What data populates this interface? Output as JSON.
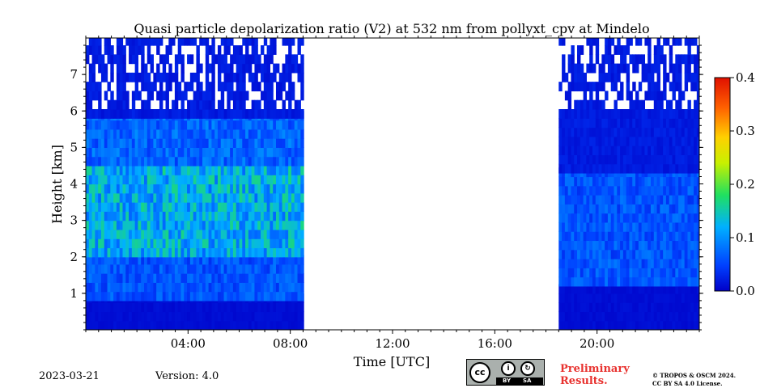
{
  "chart_data": {
    "type": "heatmap",
    "title": "Quasi particle depolarization ratio (V2) at 532 nm from pollyxt_cpv at Mindelo",
    "xlabel": "Time [UTC]",
    "ylabel": "Height [km]",
    "xlim_hours": [
      0,
      24
    ],
    "ylim_km": [
      0,
      8
    ],
    "x_ticks": [
      {
        "value": 4,
        "label": "04:00"
      },
      {
        "value": 8,
        "label": "08:00"
      },
      {
        "value": 12,
        "label": "12:00"
      },
      {
        "value": 16,
        "label": "16:00"
      },
      {
        "value": 20,
        "label": "20:00"
      }
    ],
    "y_ticks": [
      {
        "value": 1,
        "label": "1"
      },
      {
        "value": 2,
        "label": "2"
      },
      {
        "value": 3,
        "label": "3"
      },
      {
        "value": 4,
        "label": "4"
      },
      {
        "value": 5,
        "label": "5"
      },
      {
        "value": 6,
        "label": "6"
      },
      {
        "value": 7,
        "label": "7"
      }
    ],
    "colorbar": {
      "range": [
        0.0,
        0.4
      ],
      "ticks": [
        {
          "value": 0.0,
          "label": "0.0"
        },
        {
          "value": 0.1,
          "label": "0.1"
        },
        {
          "value": 0.2,
          "label": "0.2"
        },
        {
          "value": 0.3,
          "label": "0.3"
        },
        {
          "value": 0.4,
          "label": "0.4"
        }
      ],
      "colormap": "jet"
    },
    "data_gaps_hours": [
      [
        8.5,
        18.5
      ]
    ],
    "grid": false,
    "approx_profiles": [
      {
        "period_hours": [
          0,
          8.5
        ],
        "height_km": [
          0.0,
          0.8
        ],
        "value": 0.01
      },
      {
        "period_hours": [
          0,
          8.5
        ],
        "height_km": [
          0.8,
          2.0
        ],
        "value": 0.06
      },
      {
        "period_hours": [
          0,
          8.5
        ],
        "height_km": [
          2.0,
          4.5
        ],
        "value": 0.12
      },
      {
        "period_hours": [
          0,
          8.5
        ],
        "height_km": [
          4.5,
          5.8
        ],
        "value": 0.07
      },
      {
        "period_hours": [
          0,
          8.5
        ],
        "height_km": [
          5.8,
          8.0
        ],
        "value": 0.02
      },
      {
        "period_hours": [
          18.5,
          24
        ],
        "height_km": [
          0.0,
          1.2
        ],
        "value": 0.01
      },
      {
        "period_hours": [
          18.5,
          24
        ],
        "height_km": [
          1.2,
          4.3
        ],
        "value": 0.06
      },
      {
        "period_hours": [
          18.5,
          24
        ],
        "height_km": [
          4.3,
          8.0
        ],
        "value": 0.02
      }
    ]
  },
  "footer": {
    "date": "2023-03-21",
    "version": "Version: 4.0",
    "preliminary_line1": "Preliminary",
    "preliminary_line2": "Results.",
    "copyright_line1": "© TROPOS & OSCM 2024.",
    "copyright_line2": "CC BY SA 4.0 License.",
    "cc_badge": {
      "cc": "cc",
      "by": "BY",
      "sa": "SA"
    }
  }
}
